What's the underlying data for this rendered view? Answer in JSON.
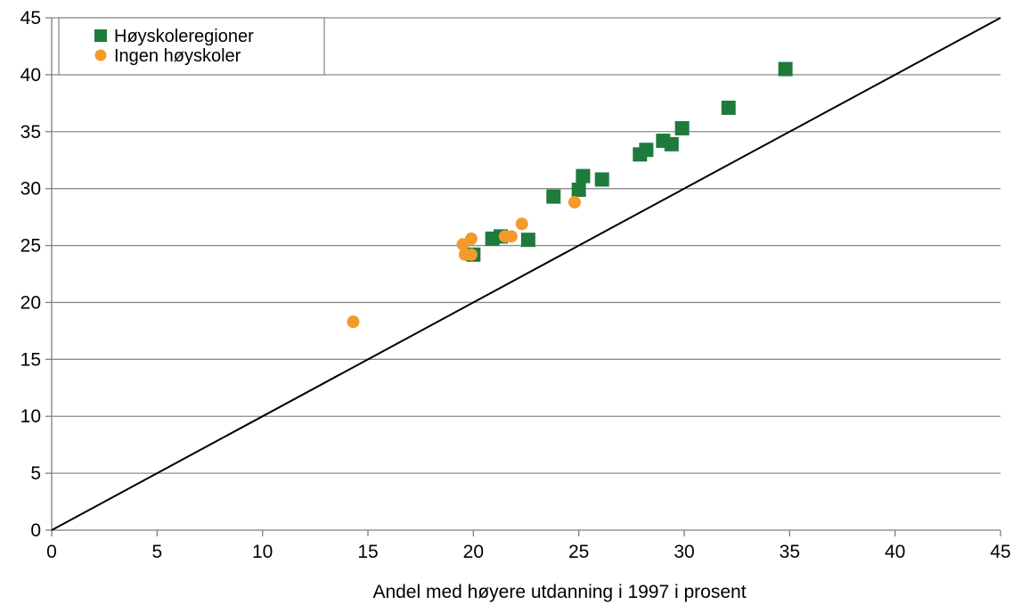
{
  "chart_data": {
    "type": "scatter",
    "title": "",
    "xlabel": "Andel med høyere utdanning i 1997 i prosent",
    "ylabel": "",
    "xlim": [
      0,
      45
    ],
    "ylim": [
      0,
      45
    ],
    "xticks": [
      0,
      5,
      10,
      15,
      20,
      25,
      30,
      35,
      40,
      45
    ],
    "yticks": [
      0,
      5,
      10,
      15,
      20,
      25,
      30,
      35,
      40,
      45
    ],
    "grid": "horizontal",
    "legend_position": "top-left",
    "reference_line": {
      "from": [
        0,
        0
      ],
      "to": [
        45,
        45
      ],
      "color": "#000000"
    },
    "series": [
      {
        "name": "Høyskoleregioner",
        "marker": "square",
        "color": "#1e7b3c",
        "points": [
          [
            20.0,
            24.2
          ],
          [
            20.9,
            25.6
          ],
          [
            21.3,
            25.8
          ],
          [
            22.6,
            25.5
          ],
          [
            23.8,
            29.3
          ],
          [
            25.0,
            29.9
          ],
          [
            25.2,
            31.1
          ],
          [
            26.1,
            30.8
          ],
          [
            27.9,
            33.0
          ],
          [
            28.2,
            33.4
          ],
          [
            29.0,
            34.2
          ],
          [
            29.4,
            33.9
          ],
          [
            29.9,
            35.3
          ],
          [
            32.1,
            37.1
          ],
          [
            34.8,
            40.5
          ]
        ]
      },
      {
        "name": "Ingen høyskoler",
        "marker": "circle",
        "color": "#f39a2b",
        "points": [
          [
            14.3,
            18.3
          ],
          [
            19.5,
            25.1
          ],
          [
            19.6,
            24.2
          ],
          [
            19.9,
            24.2
          ],
          [
            19.9,
            25.6
          ],
          [
            21.5,
            25.8
          ],
          [
            21.8,
            25.8
          ],
          [
            22.3,
            26.9
          ],
          [
            24.8,
            28.8
          ]
        ]
      }
    ]
  }
}
